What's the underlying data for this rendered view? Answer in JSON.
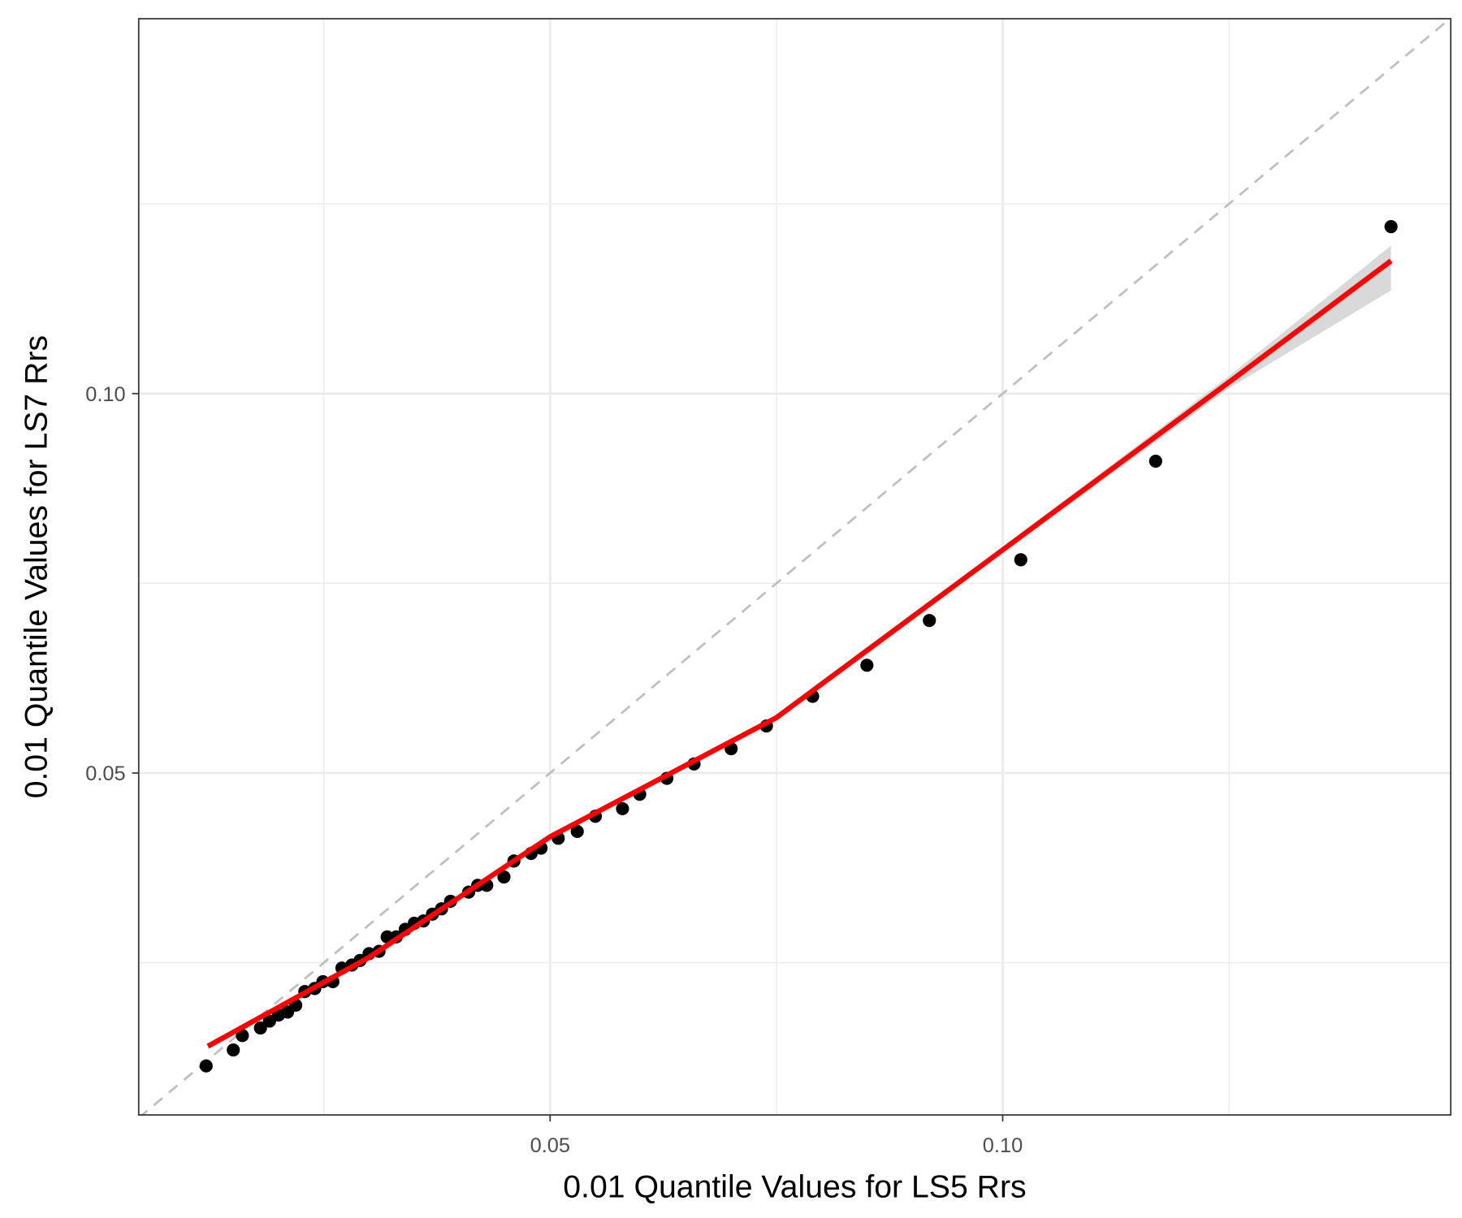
{
  "chart_data": {
    "type": "scatter",
    "x_label": "0.01 Quantile Values for LS5 Rrs",
    "y_label": "0.01 Quantile Values for LS7 Rrs",
    "xlim": [
      0.00455,
      0.1495
    ],
    "ylim": [
      0.00494,
      0.1494
    ],
    "xticks": [
      {
        "value": 0.05,
        "label": "0.05"
      },
      {
        "value": 0.1,
        "label": "0.10"
      }
    ],
    "yticks": [
      {
        "value": 0.05,
        "label": "0.05"
      },
      {
        "value": 0.1,
        "label": "0.10"
      }
    ],
    "xminor": [
      0.025,
      0.075,
      0.125
    ],
    "yminor": [
      0.025,
      0.075,
      0.125
    ],
    "grid": true,
    "identity_line": true,
    "series": [
      {
        "color": "#000000",
        "x": [
          0.012,
          0.015,
          0.016,
          0.018,
          0.019,
          0.02,
          0.021,
          0.0219,
          0.0229,
          0.024,
          0.0249,
          0.026,
          0.027,
          0.0281,
          0.029,
          0.03,
          0.0311,
          0.032,
          0.033,
          0.034,
          0.035,
          0.036,
          0.037,
          0.038,
          0.039,
          0.041,
          0.042,
          0.043,
          0.0449,
          0.046,
          0.0479,
          0.049,
          0.0509,
          0.053,
          0.055,
          0.058,
          0.0599,
          0.0629,
          0.0659,
          0.07,
          0.0739,
          0.079,
          0.085,
          0.0919,
          0.102,
          0.1169,
          0.1429
        ],
        "values": [
          0.0114,
          0.0135,
          0.0154,
          0.0164,
          0.0173,
          0.0181,
          0.0185,
          0.0194,
          0.0212,
          0.0216,
          0.0225,
          0.0225,
          0.0243,
          0.0247,
          0.0253,
          0.0262,
          0.0265,
          0.0284,
          0.0284,
          0.0294,
          0.0302,
          0.0305,
          0.0314,
          0.0321,
          0.0331,
          0.0343,
          0.0352,
          0.0352,
          0.0363,
          0.0384,
          0.0394,
          0.0401,
          0.0414,
          0.0423,
          0.0443,
          0.0453,
          0.0472,
          0.0493,
          0.0512,
          0.0532,
          0.0562,
          0.0601,
          0.0642,
          0.0701,
          0.0781,
          0.0911,
          0.122
        ]
      }
    ],
    "fit": {
      "color": "#ff0000",
      "band_color": "#d9d9d9",
      "x": [
        0.0122,
        0.03,
        0.05,
        0.075,
        0.1,
        0.125,
        0.1429
      ],
      "values": [
        0.014,
        0.0257,
        0.0416,
        0.0573,
        0.0794,
        0.1015,
        0.1175
      ],
      "lower": [
        0.0136,
        0.0254,
        0.0413,
        0.057,
        0.079,
        0.1007,
        0.1136
      ],
      "upper": [
        0.0144,
        0.026,
        0.0419,
        0.0576,
        0.0798,
        0.1023,
        0.1195
      ]
    }
  }
}
